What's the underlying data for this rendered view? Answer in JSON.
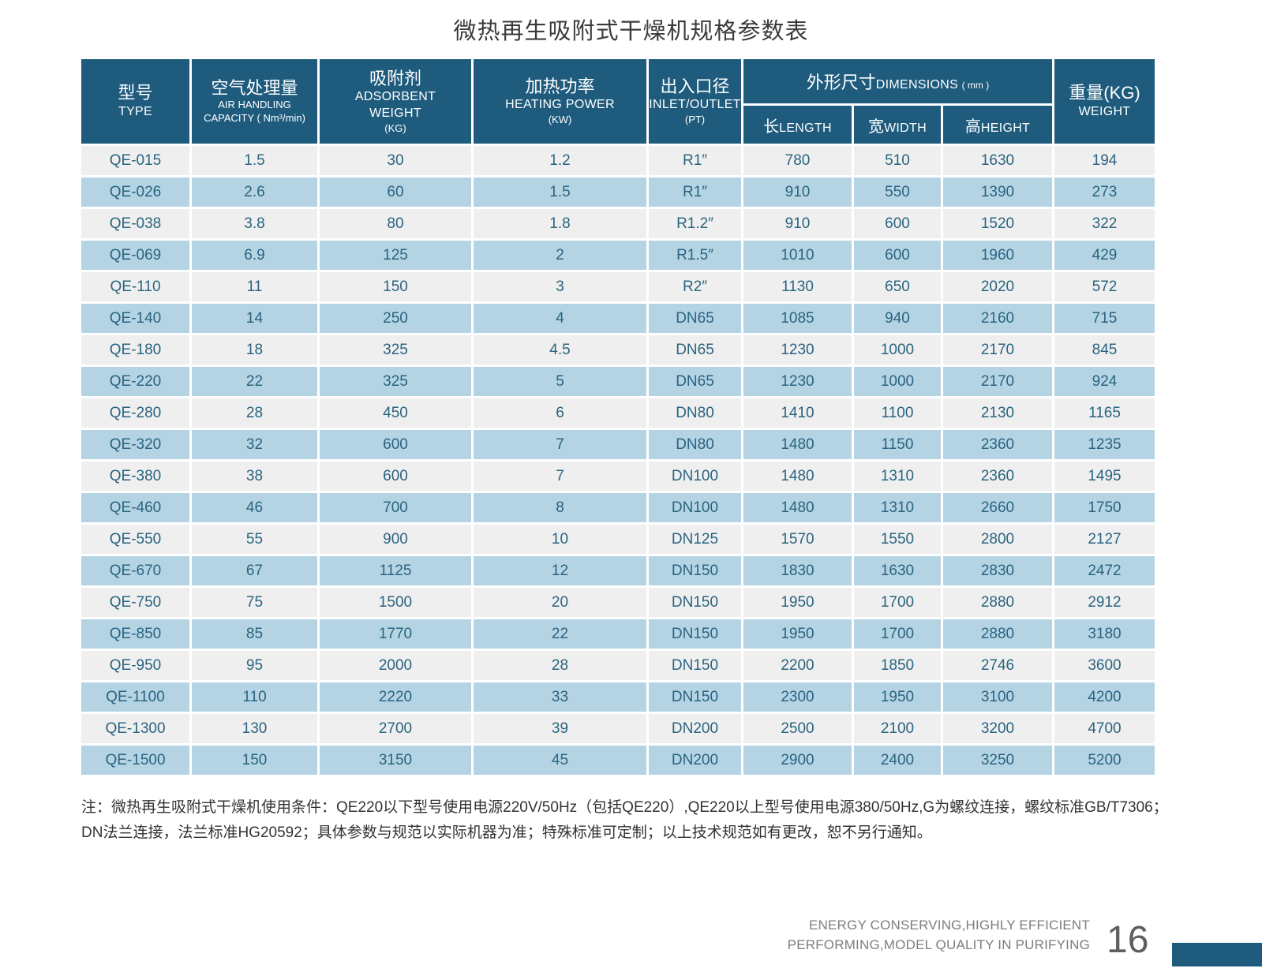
{
  "title": "微热再生吸附式干燥机规格参数表",
  "colors": {
    "header_bg": "#1e5b7d",
    "row_gray": "#efefef",
    "row_blue": "#b4d4e4",
    "cell_text": "#2a6480",
    "footer_bar": "#1e5b7d"
  },
  "table": {
    "header": {
      "type": {
        "zh": "型号",
        "en": "TYPE"
      },
      "capacity": {
        "zh": "空气处理量",
        "sub1": "AIR HANDLING",
        "sub2": "CAPACITY ( Nm³/min)"
      },
      "adsorbent": {
        "zh": "吸附剂",
        "sub1": "ADSORBENT",
        "sub2": "WEIGHT",
        "sub3": "(KG)"
      },
      "heating": {
        "zh": "加热功率",
        "sub1": "HEATING POWER",
        "sub2": "(KW)"
      },
      "inlet": {
        "zh": "出入口径",
        "sub1": "INLET/OUTLET",
        "sub2": "(PT)"
      },
      "dimensions": {
        "zh": "外形尺寸",
        "en": "DIMENSIONS",
        "unit": "( mm )",
        "length_zh": "长",
        "length_en": "LENGTH",
        "width_zh": "宽",
        "width_en": "WIDTH",
        "height_zh": "高",
        "height_en": "HEIGHT"
      },
      "weight": {
        "zh": "重量(KG)",
        "en": "WEIGHT"
      }
    },
    "rows": [
      [
        "QE-015",
        "1.5",
        "30",
        "1.2",
        "R1″",
        "780",
        "510",
        "1630",
        "194"
      ],
      [
        "QE-026",
        "2.6",
        "60",
        "1.5",
        "R1″",
        "910",
        "550",
        "1390",
        "273"
      ],
      [
        "QE-038",
        "3.8",
        "80",
        "1.8",
        "R1.2″",
        "910",
        "600",
        "1520",
        "322"
      ],
      [
        "QE-069",
        "6.9",
        "125",
        "2",
        "R1.5″",
        "1010",
        "600",
        "1960",
        "429"
      ],
      [
        "QE-110",
        "11",
        "150",
        "3",
        "R2″",
        "1130",
        "650",
        "2020",
        "572"
      ],
      [
        "QE-140",
        "14",
        "250",
        "4",
        "DN65",
        "1085",
        "940",
        "2160",
        "715"
      ],
      [
        "QE-180",
        "18",
        "325",
        "4.5",
        "DN65",
        "1230",
        "1000",
        "2170",
        "845"
      ],
      [
        "QE-220",
        "22",
        "325",
        "5",
        "DN65",
        "1230",
        "1000",
        "2170",
        "924"
      ],
      [
        "QE-280",
        "28",
        "450",
        "6",
        "DN80",
        "1410",
        "1100",
        "2130",
        "1165"
      ],
      [
        "QE-320",
        "32",
        "600",
        "7",
        "DN80",
        "1480",
        "1150",
        "2360",
        "1235"
      ],
      [
        "QE-380",
        "38",
        "600",
        "7",
        "DN100",
        "1480",
        "1310",
        "2360",
        "1495"
      ],
      [
        "QE-460",
        "46",
        "700",
        "8",
        "DN100",
        "1480",
        "1310",
        "2660",
        "1750"
      ],
      [
        "QE-550",
        "55",
        "900",
        "10",
        "DN125",
        "1570",
        "1550",
        "2800",
        "2127"
      ],
      [
        "QE-670",
        "67",
        "1125",
        "12",
        "DN150",
        "1830",
        "1630",
        "2830",
        "2472"
      ],
      [
        "QE-750",
        "75",
        "1500",
        "20",
        "DN150",
        "1950",
        "1700",
        "2880",
        "2912"
      ],
      [
        "QE-850",
        "85",
        "1770",
        "22",
        "DN150",
        "1950",
        "1700",
        "2880",
        "3180"
      ],
      [
        "QE-950",
        "95",
        "2000",
        "28",
        "DN150",
        "2200",
        "1850",
        "2746",
        "3600"
      ],
      [
        "QE-1100",
        "110",
        "2220",
        "33",
        "DN150",
        "2300",
        "1950",
        "3100",
        "4200"
      ],
      [
        "QE-1300",
        "130",
        "2700",
        "39",
        "DN200",
        "2500",
        "2100",
        "3200",
        "4700"
      ],
      [
        "QE-1500",
        "150",
        "3150",
        "45",
        "DN200",
        "2900",
        "2400",
        "3250",
        "5200"
      ]
    ]
  },
  "note": {
    "line1": "注：微热再生吸附式干燥机使用条件：QE220以下型号使用电源220V/50Hz（包括QE220）,QE220以上型号使用电源380/50Hz,G为螺纹连接，螺纹标准GB/T7306；",
    "line2": "DN法兰连接，法兰标准HG20592；具体参数与规范以实际机器为准；特殊标准可定制；以上技术规范如有更改，恕不另行通知。"
  },
  "footer": {
    "line1": "ENERGY CONSERVING,HIGHLY EFFICIENT",
    "line2": "PERFORMING,MODEL QUALITY IN PURIFYING",
    "page": "16"
  }
}
